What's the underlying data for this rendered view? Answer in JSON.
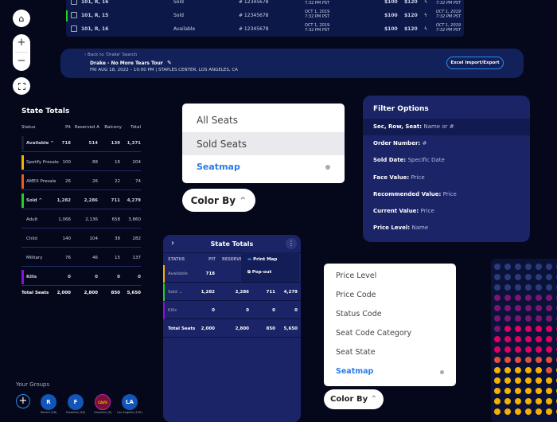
{
  "map_controls": {
    "home": "home-icon",
    "zoom_in": "+",
    "zoom_out": "−",
    "select": "select-area-icon"
  },
  "seat_table": {
    "rows": [
      {
        "seat": "101, R, 16",
        "status": "Sold",
        "order": "# 12345678",
        "date": "OCT 1, 2019",
        "time": "7:32 PM PST",
        "face": "$100",
        "current": "$120",
        "date2": "OCT 1, 2019",
        "time2": "7:32 PM PST",
        "accent": ""
      },
      {
        "seat": "101, R, 15",
        "status": "Sold",
        "order": "# 12345678",
        "date": "OCT 1, 2019",
        "time": "7:32 PM PST",
        "face": "$100",
        "current": "$120",
        "date2": "OCT 1, 2019",
        "time2": "7:32 PM PST",
        "accent": "#22d022"
      },
      {
        "seat": "101, R, 16",
        "status": "Available",
        "order": "# 12345678",
        "date": "OCT 1, 2019",
        "time": "7:32 PM PST",
        "face": "$100",
        "current": "$120",
        "date2": "OCT 1, 2019",
        "time2": "7:32 PM PST",
        "accent": ""
      }
    ]
  },
  "event": {
    "back": "Back to 'Drake' Search",
    "title": "Drake - No More Tears Tour",
    "details": "FRI AUG 18, 2022 – 10:00 PM | STAPLES CENTER, LOS ANGELES, CA",
    "excel": "Excel Import/Export"
  },
  "state_totals": {
    "title": "State Totals",
    "headers": [
      "Status",
      "Pit",
      "Reserved A",
      "Balcony",
      "Total"
    ],
    "rows": [
      {
        "label": "Available ^",
        "pit": "718",
        "res": "514",
        "bal": "139",
        "total": "1,371",
        "color": "#1a1d30",
        "bold": true
      },
      {
        "label": "Spotify Presale",
        "pit": "100",
        "res": "88",
        "bal": "16",
        "total": "204",
        "color": "#f5b000",
        "bold": false
      },
      {
        "label": "AMEX Presale",
        "pit": "26",
        "res": "26",
        "bal": "22",
        "total": "74",
        "color": "#f05a1a",
        "bold": false
      },
      {
        "label": "Sold ^",
        "pit": "1,282",
        "res": "2,286",
        "bal": "711",
        "total": "4,279",
        "color": "#22d022",
        "bold": true
      },
      {
        "label": "Adult",
        "pit": "1,066",
        "res": "2,136",
        "bal": "658",
        "total": "3,860",
        "color": "",
        "bold": false
      },
      {
        "label": "Child",
        "pit": "140",
        "res": "104",
        "bal": "38",
        "total": "282",
        "color": "",
        "bold": false
      },
      {
        "label": "Military",
        "pit": "76",
        "res": "46",
        "bal": "15",
        "total": "137",
        "color": "",
        "bold": false
      },
      {
        "label": "Kills",
        "pit": "0",
        "res": "0",
        "bal": "0",
        "total": "0",
        "color": "#8a10e0",
        "bold": true
      }
    ],
    "total": {
      "label": "Total Seats",
      "pit": "2,000",
      "res": "2,800",
      "bal": "850",
      "total": "5,650"
    }
  },
  "view_dropdown": {
    "options": [
      "All Seats",
      "Sold Seats",
      "Seatmap"
    ],
    "selected": "Sold Seats",
    "active": "Seatmap"
  },
  "color_by": {
    "label": "Color By"
  },
  "filter": {
    "title": "Filter Options",
    "fields": [
      {
        "label": "Sec, Row, Seat:",
        "value": "Name or #"
      },
      {
        "label": "Order Number:",
        "value": "#"
      },
      {
        "label": "Sold Date:",
        "value": "Specific Date"
      },
      {
        "label": "Face Value:",
        "value": "Price"
      },
      {
        "label": "Recommended Value:",
        "value": "Price"
      },
      {
        "label": "Current Value:",
        "value": "Price"
      },
      {
        "label": "Price Level:",
        "value": "Name"
      }
    ]
  },
  "panel": {
    "title": "State Totals",
    "headers": [
      "STATUS",
      "PIT",
      "RESERVED"
    ],
    "rows": [
      {
        "label": "Available",
        "pit": "718",
        "res": "",
        "bal": "",
        "total": "",
        "color": "#f5b000"
      },
      {
        "label": "Sold ⌄",
        "pit": "1,282",
        "res": "2,286",
        "bal": "711",
        "total": "4,279",
        "color": "#22d022"
      },
      {
        "label": "Kills",
        "pit": "0",
        "res": "0",
        "bal": "0",
        "total": "0",
        "color": "#8a10e0"
      }
    ],
    "total": {
      "label": "Total Seats",
      "pit": "2,000",
      "res": "2,800",
      "bal": "850",
      "total": "5,650"
    },
    "menu": [
      "Print Map",
      "Pop-out"
    ]
  },
  "colorby_dropdown": {
    "options": [
      "Price Level",
      "Price Code",
      "Status Code",
      "Seat Code Category",
      "Seat State",
      "Seatmap"
    ],
    "active": "Seatmap"
  },
  "groups": {
    "title": "Your Groups",
    "items": [
      {
        "initials": "R",
        "label": "Recent (58)",
        "color": "#1156b8"
      },
      {
        "initials": "F",
        "label": "Favorites (58)",
        "color": "#1156b8"
      },
      {
        "initials": "CAVS",
        "label": "Cavaliers (8)",
        "color": "#7a1034"
      },
      {
        "initials": "LA",
        "label": "Los Angeles (100)",
        "color": "#1156b8"
      }
    ]
  },
  "seatmap_colors": {
    "blue": "#2b3a7a",
    "purple": "#7a1670",
    "pink": "#e0005f",
    "orange": "#e0503a",
    "yellow": "#f5b000"
  }
}
